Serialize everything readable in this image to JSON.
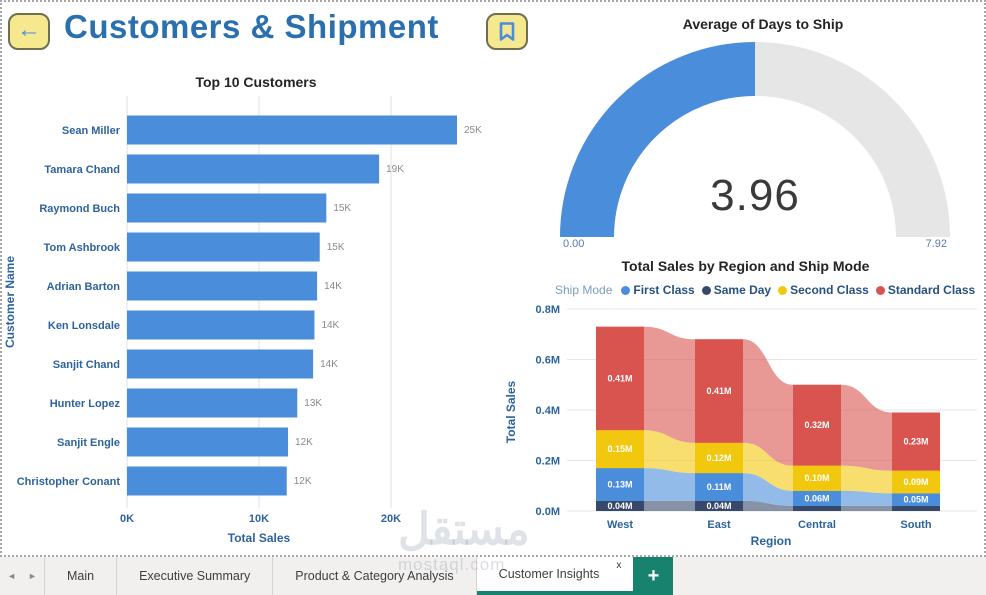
{
  "header": {
    "title": "Customers & Shipment",
    "back_glyph": "←"
  },
  "chart_data": [
    {
      "type": "bar",
      "orientation": "horizontal",
      "title": "Top 10 Customers",
      "categories": [
        "Sean Miller",
        "Tamara Chand",
        "Raymond Buch",
        "Tom Ashbrook",
        "Adrian Barton",
        "Ken Lonsdale",
        "Sanjit Chand",
        "Hunter Lopez",
        "Sanjit Engle",
        "Christopher Conant"
      ],
      "values": [
        25.0,
        19.1,
        15.1,
        14.6,
        14.4,
        14.2,
        14.1,
        12.9,
        12.2,
        12.1
      ],
      "value_labels": [
        "25K",
        "19K",
        "15K",
        "15K",
        "14K",
        "14K",
        "14K",
        "13K",
        "12K",
        "12K"
      ],
      "x_ticks": [
        "0K",
        "10K",
        "20K"
      ],
      "x_tick_values": [
        0,
        10,
        20
      ],
      "xlim": [
        0,
        25.2
      ],
      "xlabel": "Total Sales",
      "ylabel": "Customer Name",
      "bar_color": "#4a8ddb",
      "grid": true
    },
    {
      "type": "gauge",
      "title": "Average of Days to Ship",
      "value": 3.96,
      "value_label": "3.96",
      "min": 0,
      "max": 7.92,
      "min_label": "0.00",
      "max_label": "7.92",
      "fill_color": "#4a8ddb",
      "track_color": "#e6e6e6"
    },
    {
      "type": "area",
      "title": "Total Sales by Region and Ship Mode",
      "legend_title": "Ship Mode",
      "legend_order": [
        "First Class",
        "Same Day",
        "Second Class",
        "Standard Class"
      ],
      "categories": [
        "West",
        "East",
        "Central",
        "South"
      ],
      "series": [
        {
          "name": "Same Day",
          "color": "#37496b",
          "values": [
            0.04,
            0.04,
            0.02,
            0.02
          ],
          "labels": [
            "0.04M",
            "0.04M",
            null,
            null
          ]
        },
        {
          "name": "First Class",
          "color": "#4a8ddb",
          "values": [
            0.13,
            0.11,
            0.06,
            0.05
          ],
          "labels": [
            "0.13M",
            "0.11M",
            "0.06M",
            "0.05M"
          ]
        },
        {
          "name": "Second Class",
          "color": "#f2c80f",
          "values": [
            0.15,
            0.12,
            0.1,
            0.09
          ],
          "labels": [
            "0.15M",
            "0.12M",
            "0.10M",
            "0.09M"
          ]
        },
        {
          "name": "Standard Class",
          "color": "#d9534f",
          "values": [
            0.41,
            0.41,
            0.32,
            0.23
          ],
          "labels": [
            "0.41M",
            "0.41M",
            "0.32M",
            "0.23M"
          ]
        }
      ],
      "y_ticks": [
        "0.0M",
        "0.2M",
        "0.4M",
        "0.6M",
        "0.8M"
      ],
      "y_tick_values": [
        0,
        0.2,
        0.4,
        0.6,
        0.8
      ],
      "ylim": [
        0,
        0.8
      ],
      "xlabel": "Region",
      "ylabel": "Total Sales",
      "grid": true
    }
  ],
  "tabs": {
    "nav_left": "◄",
    "nav_right": "►",
    "items": [
      {
        "label": "Main",
        "active": false
      },
      {
        "label": "Executive Summary",
        "active": false
      },
      {
        "label": "Product & Category Analysis",
        "active": false
      },
      {
        "label": "Customer Insights",
        "active": true,
        "close_label": "x"
      }
    ],
    "add_label": "+",
    "active_color": "#17826e"
  },
  "watermark": {
    "arabic": "مستقل",
    "latin": "mostaql.com"
  }
}
